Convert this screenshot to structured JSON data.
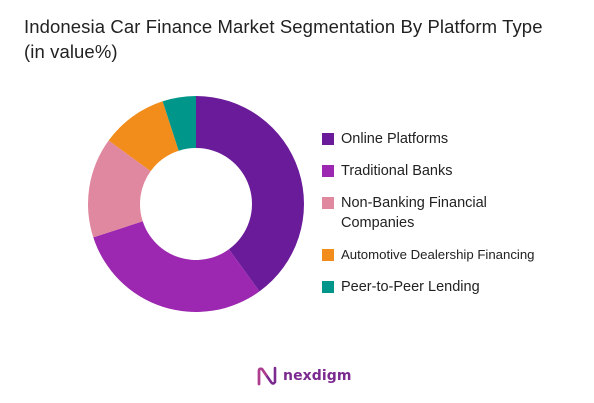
{
  "chart_data": {
    "type": "pie",
    "variant": "donut",
    "title_lines": [
      "Indonesia Car Finance Market Segmentation By Platform Type",
      "(in value%)"
    ],
    "categories": [
      "Online Platforms",
      "Traditional Banks",
      "Non-Banking Financial Companies",
      "Automotive Dealership Financing",
      "Peer-to-Peer Lending"
    ],
    "values": [
      40,
      30,
      15,
      10,
      5
    ],
    "colors": [
      "#6a1b9a",
      "#9c27b0",
      "#e0889f",
      "#f28c1b",
      "#00968a"
    ],
    "legend_position": "right"
  },
  "legend": {
    "items": [
      {
        "label": "Online Platforms",
        "color": "#6a1b9a"
      },
      {
        "label": "Traditional Banks",
        "color": "#9c27b0"
      },
      {
        "label": "Non-Banking Financial Companies",
        "color": "#e0889f"
      },
      {
        "label": "Automotive Dealership Financing",
        "color": "#f28c1b"
      },
      {
        "label": "Peer-to-Peer Lending",
        "color": "#00968a"
      }
    ]
  },
  "branding": {
    "name": "nexdigm",
    "logo_icon": "nexdigm-n-logo-icon",
    "color": "#7b2a90"
  }
}
